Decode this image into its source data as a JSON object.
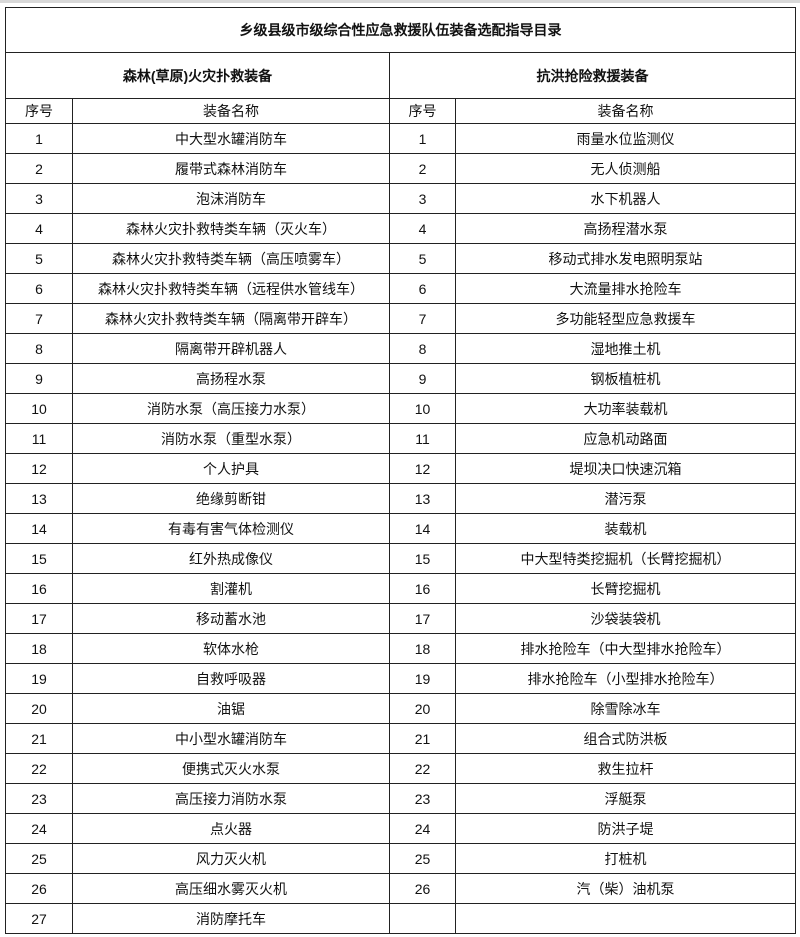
{
  "title": "乡级县级市级综合性应急救援队伍装备选配指导目录",
  "sections": [
    {
      "label": "森林(草原)火灾扑救装备",
      "col_no": "序号",
      "col_name": "装备名称"
    },
    {
      "label": "抗洪抢险救援装备",
      "col_no": "序号",
      "col_name": "装备名称"
    }
  ],
  "left_items": [
    {
      "no": "1",
      "name": "中大型水罐消防车"
    },
    {
      "no": "2",
      "name": "履带式森林消防车"
    },
    {
      "no": "3",
      "name": "泡沫消防车"
    },
    {
      "no": "4",
      "name": "森林火灾扑救特类车辆（灭火车）"
    },
    {
      "no": "5",
      "name": "森林火灾扑救特类车辆（高压喷雾车）"
    },
    {
      "no": "6",
      "name": "森林火灾扑救特类车辆（远程供水管线车）"
    },
    {
      "no": "7",
      "name": "森林火灾扑救特类车辆（隔离带开辟车）"
    },
    {
      "no": "8",
      "name": "隔离带开辟机器人"
    },
    {
      "no": "9",
      "name": "高扬程水泵"
    },
    {
      "no": "10",
      "name": "消防水泵（高压接力水泵）"
    },
    {
      "no": "11",
      "name": "消防水泵（重型水泵）"
    },
    {
      "no": "12",
      "name": "个人护具"
    },
    {
      "no": "13",
      "name": "绝缘剪断钳"
    },
    {
      "no": "14",
      "name": "有毒有害气体检测仪"
    },
    {
      "no": "15",
      "name": "红外热成像仪"
    },
    {
      "no": "16",
      "name": "割灌机"
    },
    {
      "no": "17",
      "name": "移动蓄水池"
    },
    {
      "no": "18",
      "name": "软体水枪"
    },
    {
      "no": "19",
      "name": "自救呼吸器"
    },
    {
      "no": "20",
      "name": "油锯"
    },
    {
      "no": "21",
      "name": "中小型水罐消防车"
    },
    {
      "no": "22",
      "name": "便携式灭火水泵"
    },
    {
      "no": "23",
      "name": "高压接力消防水泵"
    },
    {
      "no": "24",
      "name": "点火器"
    },
    {
      "no": "25",
      "name": "风力灭火机"
    },
    {
      "no": "26",
      "name": "高压细水雾灭火机"
    },
    {
      "no": "27",
      "name": "消防摩托车"
    }
  ],
  "right_items": [
    {
      "no": "1",
      "name": "雨量水位监测仪"
    },
    {
      "no": "2",
      "name": "无人侦测船"
    },
    {
      "no": "3",
      "name": "水下机器人"
    },
    {
      "no": "4",
      "name": "高扬程潜水泵"
    },
    {
      "no": "5",
      "name": "移动式排水发电照明泵站"
    },
    {
      "no": "6",
      "name": "大流量排水抢险车"
    },
    {
      "no": "7",
      "name": "多功能轻型应急救援车"
    },
    {
      "no": "8",
      "name": "湿地推土机"
    },
    {
      "no": "9",
      "name": "钢板植桩机"
    },
    {
      "no": "10",
      "name": "大功率装载机"
    },
    {
      "no": "11",
      "name": "应急机动路面"
    },
    {
      "no": "12",
      "name": "堤坝决口快速沉箱"
    },
    {
      "no": "13",
      "name": "潜污泵"
    },
    {
      "no": "14",
      "name": "装载机"
    },
    {
      "no": "15",
      "name": "中大型特类挖掘机（长臂挖掘机）"
    },
    {
      "no": "16",
      "name": "长臂挖掘机"
    },
    {
      "no": "17",
      "name": "沙袋装袋机"
    },
    {
      "no": "18",
      "name": "排水抢险车（中大型排水抢险车）"
    },
    {
      "no": "19",
      "name": "排水抢险车（小型排水抢险车）"
    },
    {
      "no": "20",
      "name": "除雪除冰车"
    },
    {
      "no": "21",
      "name": "组合式防洪板"
    },
    {
      "no": "22",
      "name": "救生拉杆"
    },
    {
      "no": "23",
      "name": "浮艇泵"
    },
    {
      "no": "24",
      "name": "防洪子堤"
    },
    {
      "no": "25",
      "name": "打桩机"
    },
    {
      "no": "26",
      "name": "汽（柴）油机泵"
    }
  ]
}
